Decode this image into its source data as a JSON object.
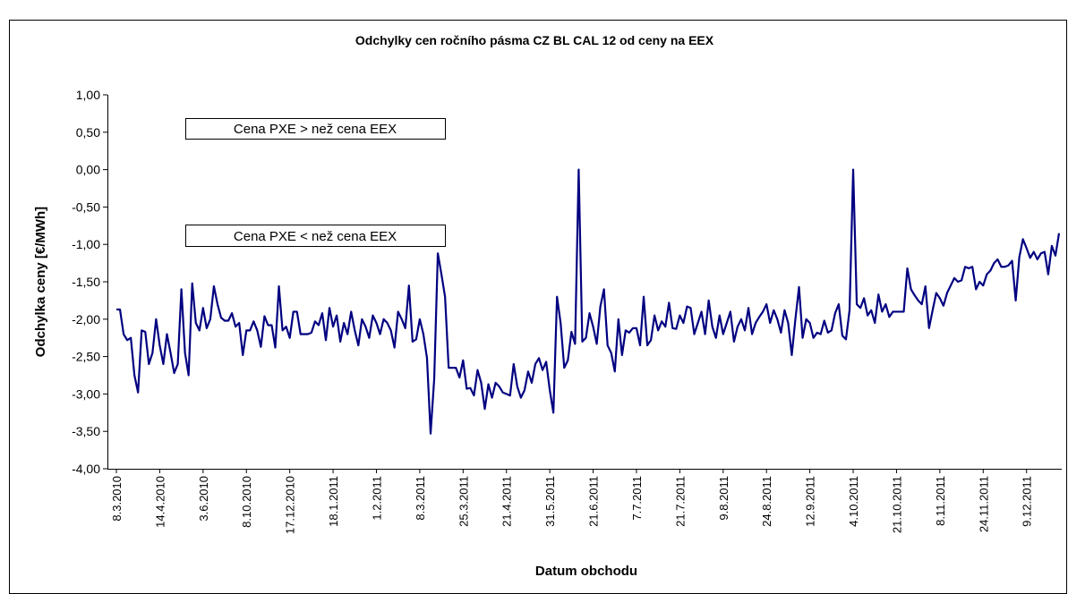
{
  "chart_data": {
    "type": "line",
    "title": "Odchylky cen ročního pásma CZ BL CAL 12 od ceny na EEX",
    "xlabel": "Datum obchodu",
    "ylabel": "Odchylka ceny [€/MWh]",
    "annotations": [
      "Cena PXE > než cena EEX",
      "Cena PXE < než cena EEX"
    ],
    "categories": [
      "8.3.2010",
      null,
      null,
      null,
      null,
      null,
      null,
      null,
      null,
      null,
      null,
      null,
      "14.4.2010",
      null,
      null,
      null,
      null,
      null,
      null,
      null,
      null,
      null,
      null,
      null,
      "3.6.2010",
      null,
      null,
      null,
      null,
      null,
      null,
      null,
      null,
      null,
      null,
      null,
      "8.10.2010",
      null,
      null,
      null,
      null,
      null,
      null,
      null,
      null,
      null,
      null,
      null,
      "17.12.2010",
      null,
      null,
      null,
      null,
      null,
      null,
      null,
      null,
      null,
      null,
      null,
      "18.1.2011",
      null,
      null,
      null,
      null,
      null,
      null,
      null,
      null,
      null,
      null,
      null,
      "1.2.2011",
      null,
      null,
      null,
      null,
      null,
      null,
      null,
      null,
      null,
      null,
      null,
      "8.3.2011",
      null,
      null,
      null,
      null,
      null,
      null,
      null,
      null,
      null,
      null,
      null,
      "25.3.2011",
      null,
      null,
      null,
      null,
      null,
      null,
      null,
      null,
      null,
      null,
      null,
      "21.4.2011",
      null,
      null,
      null,
      null,
      null,
      null,
      null,
      null,
      null,
      null,
      null,
      "31.5.2011",
      null,
      null,
      null,
      null,
      null,
      null,
      null,
      null,
      null,
      null,
      null,
      "21.6.2011",
      null,
      null,
      null,
      null,
      null,
      null,
      null,
      null,
      null,
      null,
      null,
      "7.7.2011",
      null,
      null,
      null,
      null,
      null,
      null,
      null,
      null,
      null,
      null,
      null,
      "21.7.2011",
      null,
      null,
      null,
      null,
      null,
      null,
      null,
      null,
      null,
      null,
      null,
      "9.8.2011",
      null,
      null,
      null,
      null,
      null,
      null,
      null,
      null,
      null,
      null,
      null,
      "24.8.2011",
      null,
      null,
      null,
      null,
      null,
      null,
      null,
      null,
      null,
      null,
      null,
      "12.9.2011",
      null,
      null,
      null,
      null,
      null,
      null,
      null,
      null,
      null,
      null,
      null,
      "4.10.2011",
      null,
      null,
      null,
      null,
      null,
      null,
      null,
      null,
      null,
      null,
      null,
      "21.10.2011",
      null,
      null,
      null,
      null,
      null,
      null,
      null,
      null,
      null,
      null,
      null,
      "8.11.2011",
      null,
      null,
      null,
      null,
      null,
      null,
      null,
      null,
      null,
      null,
      null,
      "24.11.2011",
      null,
      null,
      null,
      null,
      null,
      null,
      null,
      null,
      null,
      null,
      null,
      "9.12.2011",
      null,
      null,
      null,
      null,
      null,
      null,
      null,
      null,
      null
    ],
    "series": [
      {
        "name": "Odchylka",
        "color": "#000080",
        "values": [
          -1.87,
          -1.87,
          -2.2,
          -2.28,
          -2.25,
          -2.75,
          -2.98,
          -2.15,
          -2.17,
          -2.6,
          -2.45,
          -2.0,
          -2.35,
          -2.6,
          -2.2,
          -2.45,
          -2.72,
          -2.6,
          -1.6,
          -2.45,
          -2.75,
          -1.52,
          -2.05,
          -2.15,
          -1.85,
          -2.12,
          -2.0,
          -1.56,
          -1.8,
          -1.98,
          -2.02,
          -2.02,
          -1.92,
          -2.1,
          -2.05,
          -2.48,
          -2.15,
          -2.15,
          -2.03,
          -2.15,
          -2.37,
          -1.96,
          -2.08,
          -2.08,
          -2.38,
          -1.56,
          -2.15,
          -2.1,
          -2.25,
          -1.9,
          -1.9,
          -2.2,
          -2.2,
          -2.2,
          -2.18,
          -2.03,
          -2.08,
          -1.92,
          -2.28,
          -1.85,
          -2.1,
          -1.95,
          -2.3,
          -2.05,
          -2.2,
          -1.9,
          -2.15,
          -2.35,
          -2.0,
          -2.1,
          -2.25,
          -1.95,
          -2.05,
          -2.2,
          -2.0,
          -2.05,
          -2.15,
          -2.38,
          -1.9,
          -2.0,
          -2.12,
          -1.55,
          -2.3,
          -2.27,
          -2.0,
          -2.2,
          -2.52,
          -3.53,
          -2.8,
          -1.12,
          -1.4,
          -1.7,
          -2.65,
          -2.65,
          -2.65,
          -2.78,
          -2.55,
          -2.93,
          -2.92,
          -3.02,
          -2.68,
          -2.85,
          -3.2,
          -2.87,
          -3.05,
          -2.85,
          -2.9,
          -2.98,
          -3.0,
          -3.02,
          -2.6,
          -2.9,
          -3.05,
          -2.95,
          -2.7,
          -2.85,
          -2.6,
          -2.52,
          -2.68,
          -2.57,
          -2.95,
          -3.25,
          -1.7,
          -2.05,
          -2.65,
          -2.55,
          -2.17,
          -2.33,
          0.0,
          -2.3,
          -2.25,
          -1.92,
          -2.1,
          -2.33,
          -1.83,
          -1.6,
          -2.35,
          -2.45,
          -2.7,
          -2.0,
          -2.48,
          -2.15,
          -2.18,
          -2.12,
          -2.12,
          -2.35,
          -1.7,
          -2.35,
          -2.28,
          -1.95,
          -2.15,
          -2.03,
          -2.1,
          -1.78,
          -2.12,
          -2.13,
          -1.95,
          -2.05,
          -1.83,
          -1.85,
          -2.2,
          -2.05,
          -1.9,
          -2.2,
          -1.75,
          -2.1,
          -2.25,
          -1.95,
          -2.2,
          -2.05,
          -1.9,
          -2.3,
          -2.1,
          -2.0,
          -2.15,
          -1.85,
          -2.2,
          -2.05,
          -1.97,
          -1.9,
          -1.8,
          -2.05,
          -1.88,
          -2.0,
          -2.18,
          -1.88,
          -2.05,
          -2.48,
          -2.0,
          -1.57,
          -2.25,
          -2.0,
          -2.05,
          -2.25,
          -2.18,
          -2.2,
          -2.02,
          -2.18,
          -2.15,
          -1.92,
          -1.8,
          -2.22,
          -2.27,
          -1.88,
          0.0,
          -1.8,
          -1.85,
          -1.72,
          -1.95,
          -1.88,
          -2.05,
          -1.67,
          -1.9,
          -1.8,
          -1.97,
          -1.9,
          -1.9,
          -1.9,
          -1.9,
          -1.32,
          -1.6,
          -1.68,
          -1.75,
          -1.8,
          -1.56,
          -2.12,
          -1.88,
          -1.65,
          -1.72,
          -1.82,
          -1.65,
          -1.55,
          -1.45,
          -1.5,
          -1.48,
          -1.3,
          -1.32,
          -1.3,
          -1.6,
          -1.5,
          -1.55,
          -1.4,
          -1.35,
          -1.25,
          -1.2,
          -1.3,
          -1.3,
          -1.28,
          -1.22,
          -1.75,
          -1.17,
          -0.93,
          -1.05,
          -1.18,
          -1.1,
          -1.2,
          -1.12,
          -1.1,
          -1.4,
          -1.02,
          -1.15,
          -0.85
        ]
      }
    ],
    "ylim": [
      -4,
      1
    ],
    "yticks": [
      {
        "value": -4,
        "label": "-4,00"
      },
      {
        "value": -3.5,
        "label": "-3,50"
      },
      {
        "value": -3,
        "label": "-3,00"
      },
      {
        "value": -2.5,
        "label": "-2,50"
      },
      {
        "value": -2,
        "label": "-2,00"
      },
      {
        "value": -1.5,
        "label": "-1,50"
      },
      {
        "value": -1,
        "label": "-1,00"
      },
      {
        "value": -0.5,
        "label": "-0,50"
      },
      {
        "value": 0,
        "label": "0,00"
      },
      {
        "value": 0.5,
        "label": "0,50"
      },
      {
        "value": 1,
        "label": "1,00"
      }
    ],
    "grid": false
  }
}
